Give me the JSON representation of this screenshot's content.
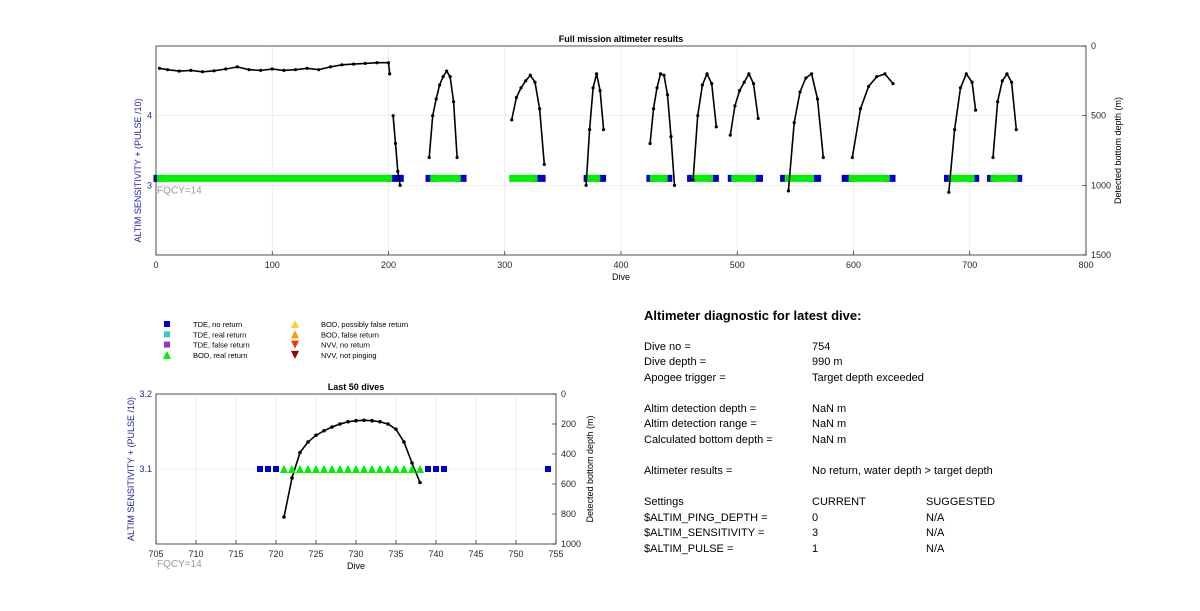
{
  "colors": {
    "tde_no_return": "#0000cc",
    "tde_real_return": "#33cccc",
    "tde_false_return": "#9933cc",
    "bod_real_return": "#00ee00",
    "bod_possibly_false_return": "#ffcc33",
    "bod_false_return": "#ff9900",
    "nvv_no_return": "#ff3300",
    "nvv_not_pinging": "#990000",
    "left_axis_label": "#2222aa",
    "fqcy_text": "#999999",
    "depth_line": "#000000"
  },
  "chart_data": [
    {
      "type": "scatter",
      "title": "Full mission altimeter results",
      "xlabel": "Dive",
      "ylabel_left": "ALTIM SENSITIVITY + (PULSE /10)",
      "ylabel_right": "Detected bottom depth (m)",
      "annotation": "FQCY=14",
      "xlim": [
        0,
        800
      ],
      "xticks": [
        "0",
        "100",
        "200",
        "300",
        "400",
        "500",
        "600",
        "700",
        "800"
      ],
      "ylim_left": [
        2.0,
        5.0
      ],
      "yticks_left": [
        "3",
        "4"
      ],
      "ylim_right": [
        1500,
        0
      ],
      "yticks_right": [
        "0",
        "500",
        "1000",
        "1500"
      ],
      "grid": true,
      "settings_series": [
        {
          "name": "TDE, no return",
          "segments": [
            [
              0,
              3
            ],
            [
              201,
              211
            ],
            [
              234,
              238
            ],
            [
              260,
              265
            ],
            [
              326,
              333
            ],
            [
              370,
              372
            ],
            [
              380,
              385
            ],
            [
              424,
              427
            ],
            [
              438,
              442
            ],
            [
              459,
              463
            ],
            [
              477,
              482
            ],
            [
              494,
              497
            ],
            [
              514,
              520
            ],
            [
              539,
              543
            ],
            [
              564,
              570
            ],
            [
              592,
              598
            ],
            [
              629,
              634
            ],
            [
              680,
              684
            ],
            [
              702,
              706
            ],
            [
              717,
              720
            ],
            [
              739,
              743
            ]
          ]
        },
        {
          "name": "BOD, real return",
          "segments": [
            [
              3,
              201
            ],
            [
              238,
              260
            ],
            [
              306,
              326
            ],
            [
              372,
              380
            ],
            [
              427,
              438
            ],
            [
              463,
              477
            ],
            [
              497,
              514
            ],
            [
              543,
              564
            ],
            [
              598,
              629
            ],
            [
              684,
              702
            ],
            [
              720,
              739
            ]
          ]
        }
      ],
      "depth_series": [
        {
          "name": "bottom depth (early)",
          "x": [
            3,
            10,
            20,
            30,
            40,
            50,
            60,
            70,
            80,
            90,
            100,
            110,
            120,
            130,
            140,
            150,
            160,
            170,
            180,
            190,
            200,
            201
          ],
          "y": [
            160,
            170,
            180,
            175,
            185,
            178,
            165,
            150,
            170,
            175,
            165,
            175,
            170,
            160,
            170,
            150,
            135,
            130,
            125,
            120,
            120,
            200
          ]
        },
        {
          "name": "dive group",
          "x": [
            204,
            206,
            208,
            210
          ],
          "y": [
            500,
            700,
            900,
            1000
          ]
        },
        {
          "name": "dive group",
          "x": [
            235,
            238,
            241,
            244,
            247,
            250,
            253,
            256,
            259
          ],
          "y": [
            800,
            500,
            380,
            280,
            220,
            180,
            220,
            400,
            800
          ]
        },
        {
          "name": "dive group",
          "x": [
            306,
            310,
            314,
            318,
            322,
            326,
            330,
            334
          ],
          "y": [
            530,
            370,
            300,
            250,
            210,
            260,
            450,
            850
          ]
        },
        {
          "name": "dive group",
          "x": [
            370,
            373,
            376,
            379,
            382,
            385
          ],
          "y": [
            1000,
            600,
            300,
            200,
            320,
            600
          ]
        },
        {
          "name": "dive group",
          "x": [
            425,
            428,
            431,
            434,
            437,
            440,
            443,
            446
          ],
          "y": [
            700,
            450,
            300,
            200,
            210,
            350,
            650,
            1000
          ]
        },
        {
          "name": "dive group",
          "x": [
            462,
            466,
            470,
            474,
            478,
            482
          ],
          "y": [
            960,
            500,
            280,
            200,
            270,
            580
          ]
        },
        {
          "name": "dive group",
          "x": [
            494,
            498,
            502,
            506,
            510,
            514,
            518
          ],
          "y": [
            640,
            430,
            320,
            260,
            200,
            270,
            520
          ]
        },
        {
          "name": "dive group",
          "x": [
            544,
            549,
            554,
            559,
            564,
            569,
            574
          ],
          "y": [
            1040,
            550,
            330,
            230,
            200,
            380,
            800
          ]
        },
        {
          "name": "dive group",
          "x": [
            599,
            606,
            613,
            620,
            627,
            634
          ],
          "y": [
            800,
            450,
            290,
            220,
            200,
            270
          ]
        },
        {
          "name": "dive group",
          "x": [
            682,
            687,
            692,
            697,
            702,
            705
          ],
          "y": [
            1050,
            600,
            300,
            200,
            260,
            460
          ]
        },
        {
          "name": "dive group",
          "x": [
            720,
            724,
            728,
            732,
            736,
            740
          ],
          "y": [
            800,
            400,
            250,
            200,
            260,
            600
          ]
        }
      ]
    },
    {
      "type": "scatter",
      "title": "Last 50 dives",
      "xlabel": "Dive",
      "ylabel_left": "ALTIM SENSITIVITY + (PULSE /10)",
      "ylabel_right": "Detected bottom depth (m)",
      "annotation": "FQCY=14",
      "xlim": [
        705,
        755
      ],
      "xticks": [
        "705",
        "710",
        "715",
        "720",
        "725",
        "730",
        "735",
        "740",
        "745",
        "750",
        "755"
      ],
      "ylim_left": [
        3.0,
        3.2
      ],
      "yticks_left": [
        "3.1",
        "3.2"
      ],
      "ylim_right": [
        1000,
        0
      ],
      "yticks_right": [
        "0",
        "200",
        "400",
        "600",
        "800",
        "1000"
      ],
      "grid": true,
      "tde_no_return": {
        "x": [
          718,
          719,
          720,
          739,
          740,
          741,
          754
        ],
        "y": [
          3.1,
          3.1,
          3.1,
          3.1,
          3.1,
          3.1,
          3.1
        ]
      },
      "bod_real_return": {
        "x": [
          721,
          722,
          723,
          724,
          725,
          726,
          727,
          728,
          729,
          730,
          731,
          732,
          733,
          734,
          735,
          736,
          737,
          738
        ],
        "y": [
          3.1,
          3.1,
          3.1,
          3.1,
          3.1,
          3.1,
          3.1,
          3.1,
          3.1,
          3.1,
          3.1,
          3.1,
          3.1,
          3.1,
          3.1,
          3.1,
          3.1,
          3.1
        ]
      },
      "bottom_depth": {
        "x": [
          721,
          722,
          723,
          724,
          725,
          726,
          727,
          728,
          729,
          730,
          731,
          732,
          733,
          734,
          735,
          736,
          737,
          738
        ],
        "y": [
          820,
          560,
          390,
          320,
          275,
          245,
          220,
          200,
          185,
          178,
          175,
          178,
          185,
          200,
          235,
          320,
          460,
          590
        ]
      }
    }
  ],
  "legend": {
    "items": [
      {
        "label": "TDE, no return",
        "color": "#0000cc",
        "shape": "square"
      },
      {
        "label": "TDE, real return",
        "color": "#33cccc",
        "shape": "square"
      },
      {
        "label": "TDE, false return",
        "color": "#9933cc",
        "shape": "square"
      },
      {
        "label": "BOD, real return",
        "color": "#00ee00",
        "shape": "triangle-up"
      },
      {
        "label": "BOD, possibly false return",
        "color": "#ffcc33",
        "shape": "triangle-up"
      },
      {
        "label": "BOD, false return",
        "color": "#ff9900",
        "shape": "triangle-up"
      },
      {
        "label": "NVV, no return",
        "color": "#ff3300",
        "shape": "triangle-down"
      },
      {
        "label": "NVV, not pinging",
        "color": "#990000",
        "shape": "triangle-down"
      }
    ]
  },
  "diagnostic": {
    "title": "Altimeter diagnostic for latest dive:",
    "rows": [
      {
        "label": "Dive no =",
        "value": "754"
      },
      {
        "label": "Dive depth =",
        "value": "990 m"
      },
      {
        "label": "Apogee trigger =",
        "value": "Target depth exceeded"
      },
      {
        "label": "Altim detection depth =",
        "value": "NaN m"
      },
      {
        "label": "Altim detection range =",
        "value": "NaN m"
      },
      {
        "label": "Calculated bottom depth =",
        "value": "NaN m"
      },
      {
        "label": "Altimeter results =",
        "value": "No return, water depth > target depth"
      }
    ],
    "settings_header": {
      "label": "Settings",
      "current": "CURRENT",
      "suggested": "SUGGESTED"
    },
    "settings": [
      {
        "label": "$ALTIM_PING_DEPTH =",
        "current": "0",
        "suggested": "N/A"
      },
      {
        "label": "$ALTIM_SENSITIVITY =",
        "current": "3",
        "suggested": "N/A"
      },
      {
        "label": "$ALTIM_PULSE =",
        "current": "1",
        "suggested": "N/A"
      }
    ]
  }
}
